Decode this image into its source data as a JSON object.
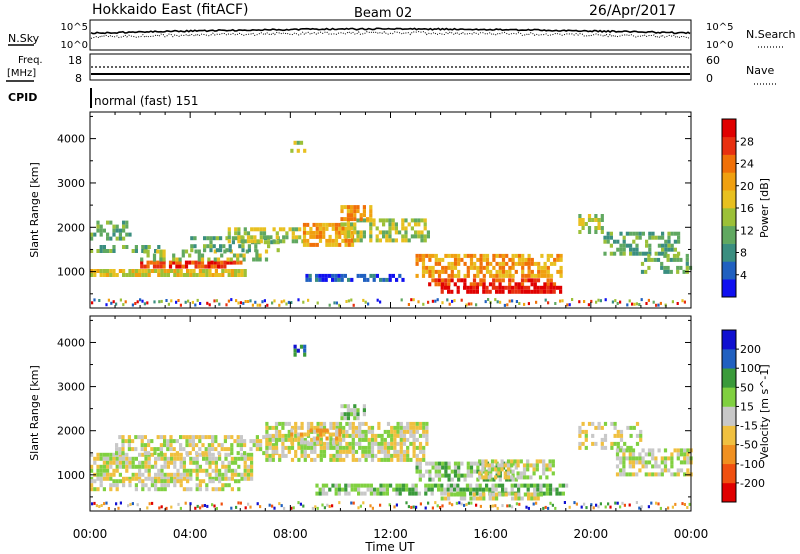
{
  "header": {
    "station": "Hokkaido East (fitACF)",
    "beam": "Beam 02",
    "date": "26/Apr/2017"
  },
  "side_labels": {
    "nsky": "N.Sky",
    "nsearch": "N.Search",
    "freq_line1": "Freq.",
    "freq_line2": "[MHz]",
    "nave": "Nave",
    "cpid": "CPID"
  },
  "top_axes": {
    "noise_ticks": [
      "10^5",
      "10^0"
    ],
    "freq_ticks": [
      "18",
      "8"
    ],
    "nave_ticks": [
      "60",
      "0"
    ]
  },
  "cpid_text": "normal (fast) 151",
  "chart_data": [
    {
      "type": "heatmap",
      "name": "power",
      "ylabel": "Slant Range [km]",
      "xlabel": "",
      "x_range_hours": [
        0,
        24
      ],
      "ylim": [
        180,
        4600
      ],
      "yticks": [
        "1000",
        "2000",
        "3000",
        "4000"
      ],
      "colorbar_label": "Power [dB]",
      "colorbar_ticks": [
        "28",
        "24",
        "20",
        "16",
        "12",
        "8",
        "4"
      ],
      "colors": [
        "#1010f0",
        "#2060c0",
        "#3a8e80",
        "#60a860",
        "#9cc038",
        "#e8c020",
        "#f0a010",
        "#f07008",
        "#e83010",
        "#e00000"
      ],
      "bands": [
        {
          "t0": 0.0,
          "t1": 6.2,
          "r0": 960,
          "r1": 1060,
          "level": 5,
          "density": 0.9
        },
        {
          "t0": 0.0,
          "t1": 3.0,
          "r0": 1450,
          "r1": 1600,
          "level": 3,
          "density": 0.55
        },
        {
          "t0": 0.0,
          "t1": 1.6,
          "r0": 1750,
          "r1": 2150,
          "level": 3,
          "density": 0.45
        },
        {
          "t0": 2.0,
          "t1": 6.0,
          "r0": 1100,
          "r1": 1250,
          "level": 8,
          "density": 0.85
        },
        {
          "t0": 2.0,
          "t1": 7.0,
          "r0": 1250,
          "r1": 1500,
          "level": 4,
          "density": 0.5
        },
        {
          "t0": 4.0,
          "t1": 7.5,
          "r0": 1500,
          "r1": 1800,
          "level": 3,
          "density": 0.45
        },
        {
          "t0": 5.5,
          "t1": 8.5,
          "r0": 1700,
          "r1": 2000,
          "level": 4,
          "density": 0.6
        },
        {
          "t0": 8.5,
          "t1": 10.5,
          "r0": 1600,
          "r1": 2100,
          "level": 6,
          "density": 0.75
        },
        {
          "t0": 10.0,
          "t1": 13.5,
          "r0": 1700,
          "r1": 2200,
          "level": 4,
          "density": 0.6
        },
        {
          "t0": 10.0,
          "t1": 11.2,
          "r0": 2200,
          "r1": 2500,
          "level": 6,
          "density": 0.6
        },
        {
          "t0": 8.6,
          "t1": 12.5,
          "r0": 820,
          "r1": 950,
          "level": 1,
          "density": 0.7
        },
        {
          "t0": 13.0,
          "t1": 18.8,
          "r0": 900,
          "r1": 1400,
          "level": 6,
          "density": 0.65
        },
        {
          "t0": 13.5,
          "t1": 18.5,
          "r0": 750,
          "r1": 850,
          "level": 8,
          "density": 0.7
        },
        {
          "t0": 14.0,
          "t1": 18.8,
          "r0": 550,
          "r1": 680,
          "level": 9,
          "density": 0.85
        },
        {
          "t0": 19.5,
          "t1": 20.5,
          "r0": 1900,
          "r1": 2300,
          "level": 4,
          "density": 0.5
        },
        {
          "t0": 20.5,
          "t1": 23.5,
          "r0": 1400,
          "r1": 1900,
          "level": 3,
          "density": 0.5
        },
        {
          "t0": 22.0,
          "t1": 24.0,
          "r0": 1000,
          "r1": 1400,
          "level": 3,
          "density": 0.5
        },
        {
          "t0": 8.0,
          "t1": 8.6,
          "r0": 3750,
          "r1": 3950,
          "level": 4,
          "density": 0.4
        }
      ]
    },
    {
      "type": "heatmap",
      "name": "velocity",
      "ylabel": "Slant Range [km]",
      "xlabel": "Time UT",
      "x_range_hours": [
        0,
        24
      ],
      "xticks": [
        "00:00",
        "04:00",
        "08:00",
        "12:00",
        "16:00",
        "20:00",
        "00:00"
      ],
      "ylim": [
        180,
        4600
      ],
      "yticks": [
        "1000",
        "2000",
        "3000",
        "4000"
      ],
      "colorbar_label": "Velocity [m s^-1]",
      "colorbar_ticks": [
        "200",
        "100",
        "50",
        "15",
        "-15",
        "-50",
        "-100",
        "-200"
      ],
      "colors": [
        "#e00000",
        "#f05010",
        "#f09020",
        "#f0c040",
        "#c8c8c8",
        "#80d040",
        "#3a9a3a",
        "#2060c0",
        "#1010d0"
      ],
      "bands": [
        {
          "t0": 0.0,
          "t1": 6.5,
          "r0": 900,
          "r1": 1500,
          "level": 4,
          "density": 0.75
        },
        {
          "t0": 0.0,
          "t1": 6.0,
          "r0": 650,
          "r1": 900,
          "level": 4,
          "density": 0.5
        },
        {
          "t0": 1.0,
          "t1": 7.5,
          "r0": 1500,
          "r1": 1900,
          "level": 4,
          "density": 0.55
        },
        {
          "t0": 7.0,
          "t1": 13.5,
          "r0": 1300,
          "r1": 2200,
          "level": 4,
          "density": 0.7
        },
        {
          "t0": 8.0,
          "t1": 10.0,
          "r0": 1750,
          "r1": 2050,
          "level": 3,
          "density": 0.5
        },
        {
          "t0": 10.0,
          "t1": 11.0,
          "r0": 2300,
          "r1": 2600,
          "level": 5,
          "density": 0.6
        },
        {
          "t0": 13.0,
          "t1": 17.0,
          "r0": 900,
          "r1": 1300,
          "level": 5,
          "density": 0.65
        },
        {
          "t0": 15.5,
          "t1": 18.5,
          "r0": 900,
          "r1": 1350,
          "level": 4,
          "density": 0.6
        },
        {
          "t0": 9.0,
          "t1": 19.0,
          "r0": 600,
          "r1": 800,
          "level": 5,
          "density": 0.75
        },
        {
          "t0": 14.0,
          "t1": 18.0,
          "r0": 450,
          "r1": 600,
          "level": 4,
          "density": 0.7
        },
        {
          "t0": 19.5,
          "t1": 22.0,
          "r0": 1600,
          "r1": 2200,
          "level": 4,
          "density": 0.45
        },
        {
          "t0": 21.0,
          "t1": 24.0,
          "r0": 1000,
          "r1": 1600,
          "level": 4,
          "density": 0.6
        },
        {
          "t0": 8.0,
          "t1": 8.6,
          "r0": 3750,
          "r1": 3950,
          "level": 7,
          "density": 0.35
        }
      ]
    }
  ]
}
